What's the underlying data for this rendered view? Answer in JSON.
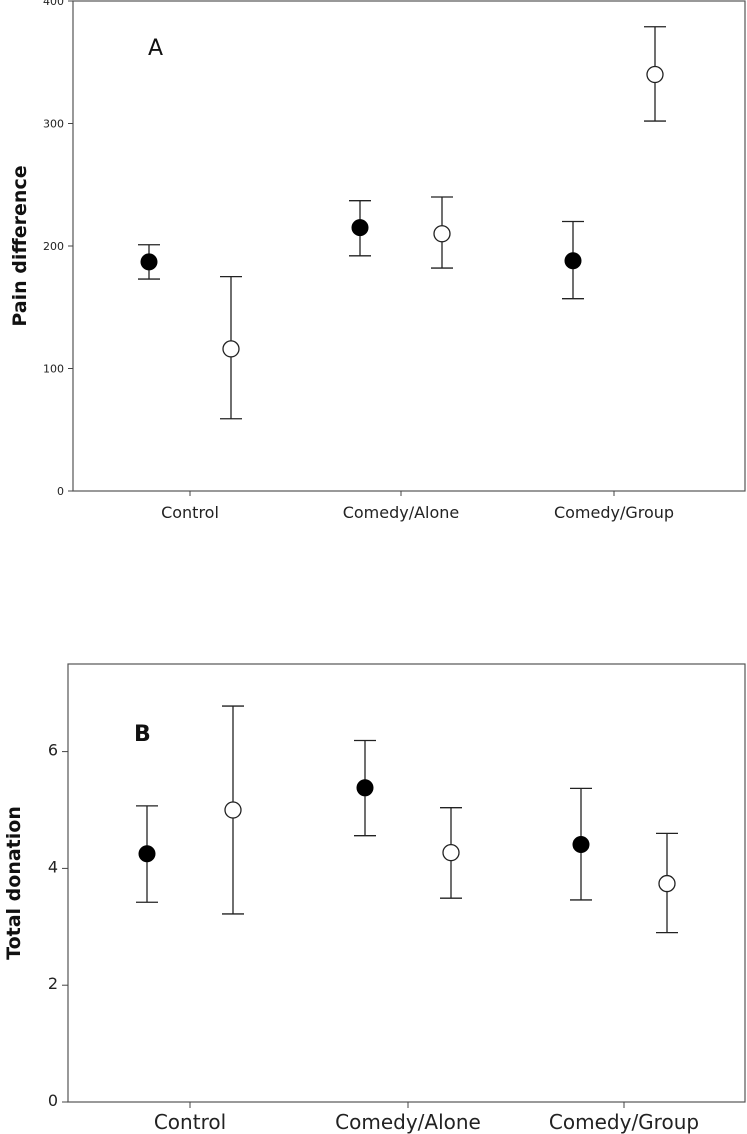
{
  "chart_data": [
    {
      "type": "scatter",
      "panel_label": "A",
      "title": "",
      "xlabel": "",
      "ylabel": "Pain difference",
      "ylim": [
        0,
        400
      ],
      "yticks": [
        "0",
        "100",
        "200",
        "300",
        "400"
      ],
      "yticks_values": [
        0,
        100,
        200,
        300,
        400
      ],
      "categories": [
        "Control",
        "Comedy/Alone",
        "Comedy/Group"
      ],
      "series": [
        {
          "name": "filled",
          "marker": "filled-circle",
          "values": [
            187,
            215,
            188
          ],
          "err_low": [
            173,
            192,
            157
          ],
          "err_high": [
            201,
            237,
            220
          ]
        },
        {
          "name": "open",
          "marker": "open-circle",
          "values": [
            116,
            210,
            340
          ],
          "err_low": [
            59,
            182,
            302
          ],
          "err_high": [
            175,
            240,
            379
          ]
        }
      ]
    },
    {
      "type": "scatter",
      "panel_label": "B",
      "title": "",
      "xlabel": "",
      "ylabel": "Total donation",
      "ylim": [
        0,
        7.5
      ],
      "yticks": [
        "0",
        "2",
        "4",
        "6"
      ],
      "yticks_values": [
        0,
        2,
        4,
        6
      ],
      "categories": [
        "Control",
        "Comedy/Alone",
        "Comedy/Group"
      ],
      "series": [
        {
          "name": "filled",
          "marker": "filled-circle",
          "values": [
            4.25,
            5.38,
            4.41
          ],
          "err_low": [
            3.42,
            4.56,
            3.46
          ],
          "err_high": [
            5.07,
            6.19,
            5.37
          ]
        },
        {
          "name": "open",
          "marker": "open-circle",
          "values": [
            5.0,
            4.27,
            3.74
          ],
          "err_low": [
            3.22,
            3.49,
            2.9
          ],
          "err_high": [
            6.78,
            5.04,
            4.6
          ]
        }
      ]
    }
  ]
}
